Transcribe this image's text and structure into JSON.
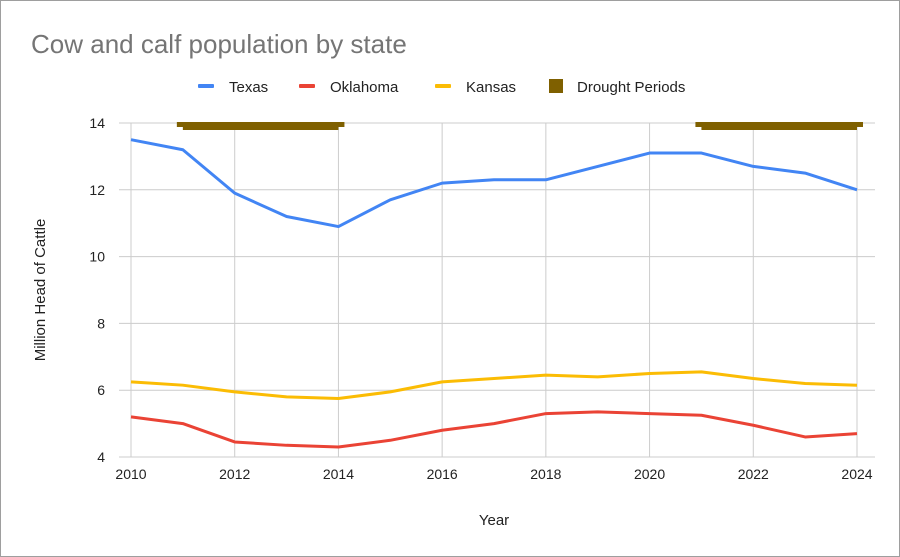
{
  "chart_data": {
    "type": "line",
    "title": "Cow and calf population by state",
    "xlabel": "Year",
    "ylabel": "Million Head of Cattle",
    "xlim": [
      2010,
      2024
    ],
    "ylim": [
      4,
      14
    ],
    "xticks": [
      2010,
      2012,
      2014,
      2016,
      2018,
      2020,
      2022,
      2024
    ],
    "yticks": [
      4,
      6,
      8,
      10,
      12,
      14
    ],
    "grid": true,
    "legend": "top",
    "x": [
      2010,
      2011,
      2012,
      2013,
      2014,
      2015,
      2016,
      2017,
      2018,
      2019,
      2020,
      2021,
      2022,
      2023,
      2024
    ],
    "series": [
      {
        "name": "Texas",
        "color": "#4285f4",
        "values": [
          13.5,
          13.2,
          11.9,
          11.2,
          10.9,
          11.7,
          12.2,
          12.3,
          12.3,
          12.7,
          13.1,
          13.1,
          12.7,
          12.5,
          12.0
        ]
      },
      {
        "name": "Oklahoma",
        "color": "#ea4335",
        "values": [
          5.2,
          5.0,
          4.45,
          4.35,
          4.3,
          4.5,
          4.8,
          5.0,
          5.3,
          5.35,
          5.3,
          5.25,
          4.95,
          4.6,
          4.7
        ]
      },
      {
        "name": "Kansas",
        "color": "#fbbc04",
        "values": [
          6.25,
          6.15,
          5.95,
          5.8,
          5.75,
          5.95,
          6.25,
          6.35,
          6.45,
          6.4,
          6.5,
          6.55,
          6.35,
          6.2,
          6.15
        ]
      }
    ],
    "drought": {
      "name": "Drought Periods",
      "color": "#7f6000",
      "level": 14,
      "periods": [
        [
          2011,
          2014
        ],
        [
          2021,
          2024
        ]
      ]
    }
  }
}
